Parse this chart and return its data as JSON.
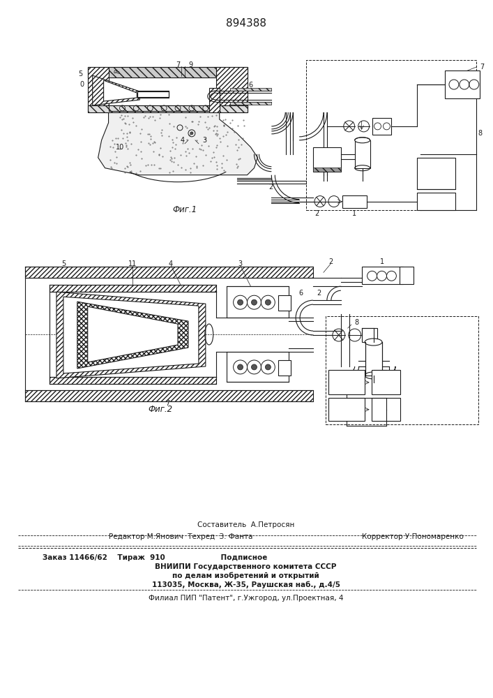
{
  "patent_number": "894388",
  "fig1_caption": "Фиг.1",
  "fig2_caption": "Фиг.2",
  "footer_line1": "Составитель  А.Петросян",
  "footer_line2_left": "Редактор М.Янович  Техред  З. Фанта",
  "footer_line2_right": "Корректор У.Пономаренко",
  "footer_line3": "Заказ 11466/62    Тираж  910                      Подписное",
  "footer_line4": "ВНИИПИ Государственного комитета СССР",
  "footer_line5": "по делам изобретений и открытий",
  "footer_line6": "113035, Москва, Ж-35, Раушская наб., д.4/5",
  "footer_line7": "Филиал ПИП \"Патент\", г.Ужгород, ул.Проектная, 4"
}
